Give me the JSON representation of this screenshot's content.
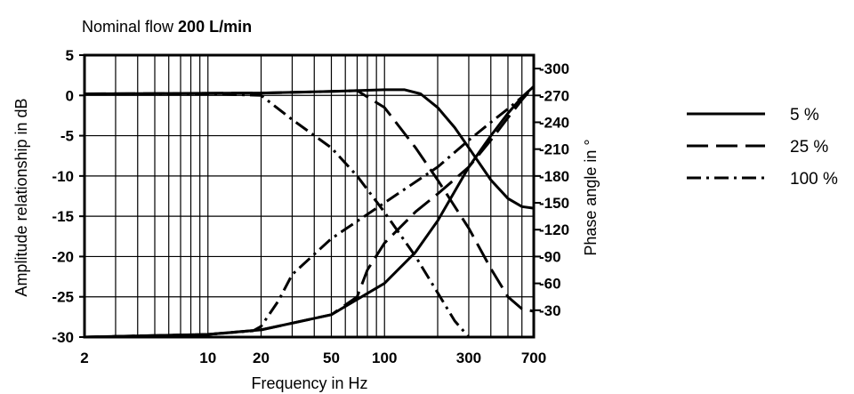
{
  "chart_data": {
    "type": "line",
    "title": "Nominal flow",
    "title_bold": "200 L/min",
    "xlabel": "Frequency in Hz",
    "ylabel_left": "Amplitude relationship in dB",
    "ylabel_right": "Phase angle in °",
    "x_scale": "log",
    "xlim": [
      2,
      700
    ],
    "x_ticks": [
      2,
      10,
      20,
      50,
      100,
      300,
      700
    ],
    "x_tick_labels": [
      "2",
      "10",
      "20",
      "50",
      "100",
      "300",
      "700"
    ],
    "y_left_lim": [
      -30,
      5
    ],
    "y_left_ticks": [
      5,
      0,
      -5,
      -10,
      -15,
      -20,
      -25,
      -30
    ],
    "y_left_tick_labels": [
      "5",
      "0",
      "-5",
      "-10",
      "-15",
      "-20",
      "-25",
      "-30"
    ],
    "y_right_lim": [
      0,
      315
    ],
    "y_right_ticks": [
      300,
      270,
      240,
      210,
      180,
      150,
      120,
      90,
      60,
      30
    ],
    "y_right_tick_labels": [
      "-300",
      "-270",
      "-240",
      "-210",
      "-180",
      "-150",
      "-120",
      "-90",
      "-60",
      "-30"
    ],
    "grid": true,
    "legend_position": "right",
    "series": [
      {
        "name": "5 %",
        "dash": "solid",
        "amplitude": {
          "x": [
            2,
            20,
            50,
            100,
            130,
            160,
            200,
            250,
            300,
            400,
            500,
            600,
            700
          ],
          "y": [
            0.2,
            0.3,
            0.5,
            0.7,
            0.7,
            0.2,
            -1.5,
            -4.0,
            -6.5,
            -10.5,
            -12.8,
            -13.8,
            -14.0
          ]
        },
        "phase": {
          "x": [
            2,
            10,
            20,
            50,
            100,
            150,
            200,
            300,
            400,
            500,
            600,
            700
          ],
          "y": [
            0,
            3,
            8,
            25,
            60,
            95,
            130,
            190,
            225,
            250,
            268,
            280
          ]
        }
      },
      {
        "name": "25 %",
        "dash": "dashed",
        "amplitude": {
          "x": [
            2,
            20,
            50,
            70,
            100,
            150,
            200,
            300,
            400,
            500,
            600,
            700
          ],
          "y": [
            0.2,
            0.3,
            0.5,
            0.6,
            -1.5,
            -6.5,
            -10.5,
            -16.5,
            -21.5,
            -25.0,
            -26.5,
            -26.8
          ]
        },
        "phase": {
          "x": [
            2,
            10,
            20,
            50,
            70,
            80,
            100,
            150,
            200,
            300,
            400,
            500,
            600,
            700
          ],
          "y": [
            0,
            3,
            8,
            25,
            45,
            75,
            105,
            140,
            160,
            190,
            220,
            245,
            265,
            280
          ]
        }
      },
      {
        "name": "100 %",
        "dash": "dashdot",
        "amplitude": {
          "x": [
            2,
            10,
            20,
            30,
            50,
            70,
            100,
            150,
            200,
            250,
            300
          ],
          "y": [
            0.2,
            0.2,
            0,
            -3,
            -6.5,
            -10,
            -14.5,
            -20,
            -24.5,
            -28,
            -30
          ]
        },
        "phase": {
          "x": [
            2,
            10,
            18,
            20,
            25,
            30,
            50,
            100,
            200,
            300,
            400,
            500,
            600,
            700
          ],
          "y": [
            0,
            3,
            7,
            12,
            40,
            70,
            110,
            150,
            190,
            220,
            240,
            255,
            268,
            280
          ]
        }
      }
    ]
  }
}
